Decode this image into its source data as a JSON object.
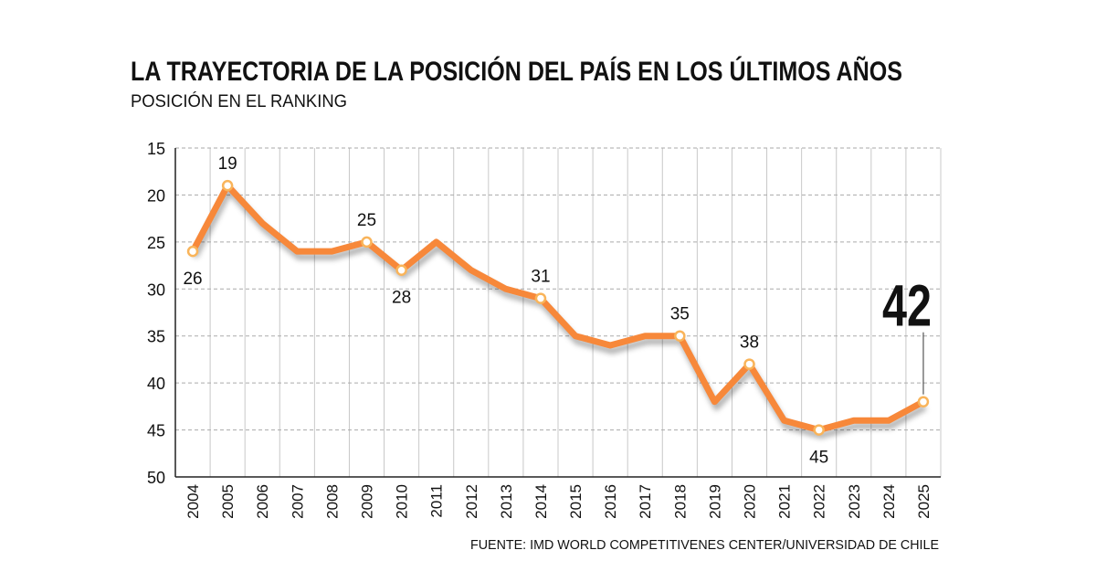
{
  "chart_data": {
    "type": "line",
    "title": "LA TRAYECTORIA DE LA POSICIÓN DEL PAÍS EN LOS ÚLTIMOS AÑOS",
    "subtitle": "POSICIÓN EN EL RANKING",
    "source": "FUENTE: IMD WORLD COMPETITIVENES CENTER/UNIVERSIDAD DE CHILE",
    "categories": [
      "2004",
      "2005",
      "2006",
      "2007",
      "2008",
      "2009",
      "2010",
      "2011",
      "2012",
      "2013",
      "2014",
      "2015",
      "2016",
      "2017",
      "2018",
      "2019",
      "2020",
      "2021",
      "2022",
      "2023",
      "2024",
      "2025"
    ],
    "series": [
      {
        "name": "Posición",
        "color": "#f7883a",
        "values": [
          26,
          19,
          23,
          26,
          26,
          25,
          28,
          25,
          28,
          30,
          31,
          35,
          36,
          35,
          35,
          42,
          38,
          44,
          45,
          44,
          44,
          42
        ],
        "value_labels": [
          "26",
          "19",
          null,
          null,
          null,
          "25",
          "28",
          null,
          null,
          null,
          "31",
          null,
          null,
          null,
          "35",
          null,
          "38",
          null,
          "45",
          null,
          null,
          "42"
        ]
      }
    ],
    "ylim": [
      15,
      50
    ],
    "y_inverted": true,
    "yticks": [
      15,
      20,
      25,
      30,
      35,
      40,
      45,
      50
    ],
    "grid": true
  }
}
